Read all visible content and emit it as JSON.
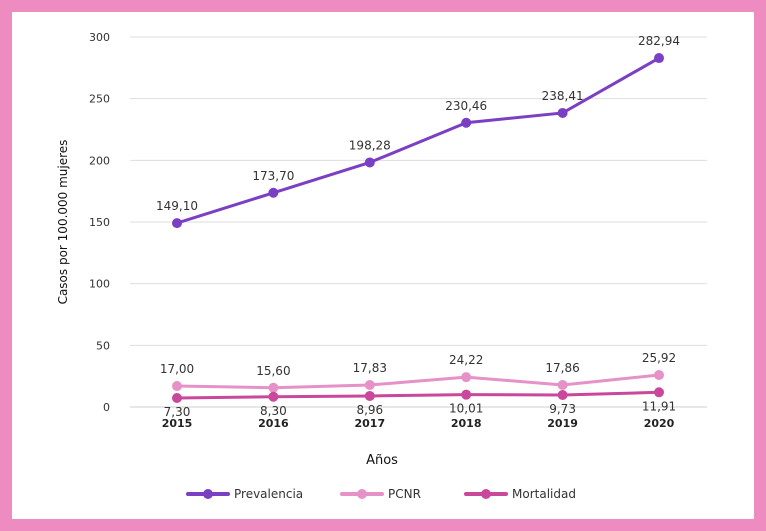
{
  "chart_data": {
    "type": "line",
    "title": "",
    "xlabel": "Años",
    "ylabel": "Casos por 100.000 mujeres",
    "categories": [
      "2015",
      "2016",
      "2017",
      "2018",
      "2019",
      "2020"
    ],
    "ylim": [
      0,
      300
    ],
    "yticks": [
      "0",
      "50",
      "100",
      "150",
      "200",
      "250",
      "300"
    ],
    "grid": true,
    "legend_position": "bottom",
    "series": [
      {
        "name": "Prevalencia",
        "color": "#7b3fc4",
        "values": [
          149.1,
          173.7,
          198.28,
          230.46,
          238.41,
          282.94
        ],
        "labels": [
          "149,10",
          "173,70",
          "198,28",
          "230,46",
          "238,41",
          "282,94"
        ],
        "label_position": "above"
      },
      {
        "name": "PCNR",
        "color": "#e691c8",
        "values": [
          17.0,
          15.6,
          17.83,
          24.22,
          17.86,
          25.92
        ],
        "labels": [
          "17,00",
          "15,60",
          "17,83",
          "24,22",
          "17,86",
          "25,92"
        ],
        "label_position": "above"
      },
      {
        "name": "Mortalidad",
        "color": "#c9489b",
        "values": [
          7.3,
          8.3,
          8.96,
          10.01,
          9.73,
          11.91
        ],
        "labels": [
          "7,30",
          "8,30",
          "8,96",
          "10,01",
          "9,73",
          "11,91"
        ],
        "label_position": "below"
      }
    ]
  },
  "frame_color": "#ee8cc2"
}
